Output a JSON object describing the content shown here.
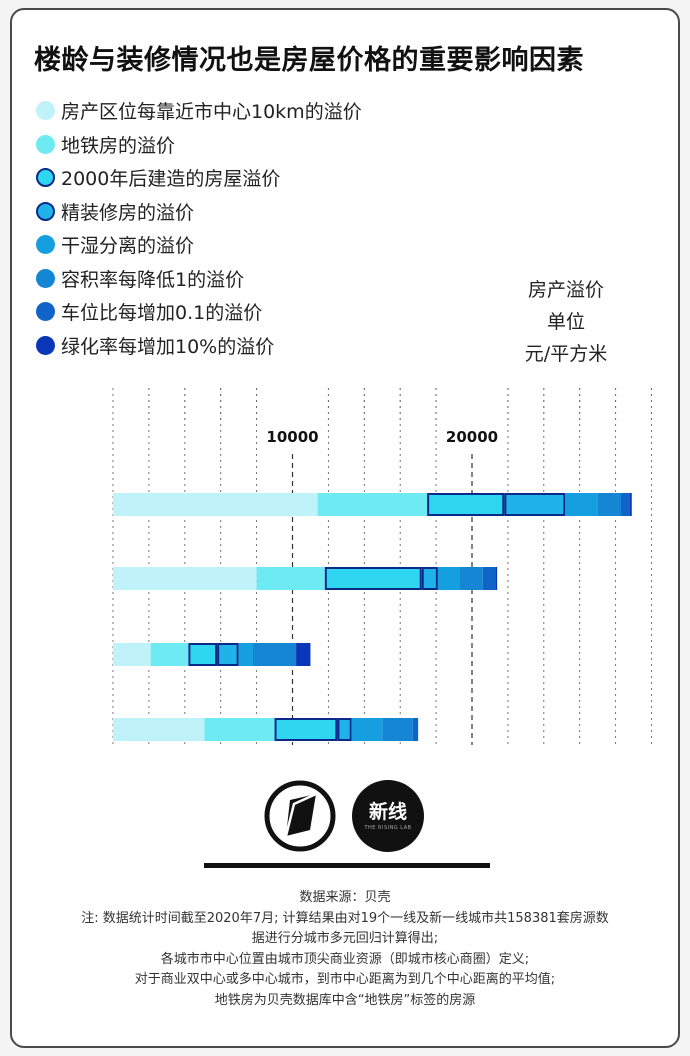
{
  "title": "楼龄与装修情况也是房屋价格的重要影响因素",
  "legend": [
    {
      "label": "房产区位每靠近市中心10km的溢价",
      "color": "#bff3f9",
      "outlined": false
    },
    {
      "label": "地铁房的溢价",
      "color": "#6eeaf3",
      "outlined": false
    },
    {
      "label": "2000年后建造的房屋溢价",
      "color": "#2ed6ef",
      "outlined": true
    },
    {
      "label": "精装修房的溢价",
      "color": "#1fb3ea",
      "outlined": true
    },
    {
      "label": "干湿分离的溢价",
      "color": "#169fe0",
      "outlined": false
    },
    {
      "label": "容积率每降低1的溢价",
      "color": "#1486d3",
      "outlined": false
    },
    {
      "label": "车位比每增加0.1的溢价",
      "color": "#1064c8",
      "outlined": false
    },
    {
      "label": "绿化率每增加10%的溢价",
      "color": "#0a36b8",
      "outlined": false
    }
  ],
  "unit_label": [
    "房产溢价",
    "单位",
    "元/平方米"
  ],
  "chart_data": {
    "type": "bar",
    "orientation": "horizontal",
    "stacked": true,
    "x_ticks": [
      10000,
      20000
    ],
    "xlim": [
      0,
      30000
    ],
    "categories": [
      "",
      "",
      "",
      ""
    ],
    "series": [
      {
        "name": "房产区位每靠近市中心10km的溢价",
        "values": [
          11400,
          8000,
          2100,
          5100
        ]
      },
      {
        "name": "地铁房的溢价",
        "values": [
          6100,
          3800,
          2100,
          3900
        ]
      },
      {
        "name": "2000年后建造的房屋溢价",
        "values": [
          4300,
          5400,
          1600,
          3500
        ]
      },
      {
        "name": "精装修房的溢价",
        "values": [
          3400,
          900,
          1200,
          800
        ]
      },
      {
        "name": "干湿分离的溢价",
        "values": [
          1800,
          1200,
          800,
          1700
        ]
      },
      {
        "name": "容积率每降低1的溢价",
        "values": [
          1300,
          1300,
          2400,
          1700
        ]
      },
      {
        "name": "车位比每增加0.1的溢价",
        "values": [
          500,
          700,
          0,
          300
        ]
      },
      {
        "name": "绿化率每增加10%的溢价",
        "values": [
          100,
          100,
          800,
          0
        ]
      }
    ],
    "grid": "dashed vertical",
    "legend_position": "top-left"
  },
  "logos": {
    "right_logo_text": "新线",
    "right_logo_sub": "THE RISING LAB"
  },
  "notes": [
    "数据来源：贝壳",
    "注: 数据统计时间截至2020年7月; 计算结果由对19个一线及新一线城市共158381套房源数",
    "据进行分城市多元回归计算得出;",
    "各城市市中心位置由城市顶尖商业资源（即城市核心商圈）定义;",
    "对于商业双中心或多中心城市，到市中心距离为到几个中心距离的平均值;",
    "地铁房为贝壳数据库中含“地铁房”标签的房源"
  ]
}
